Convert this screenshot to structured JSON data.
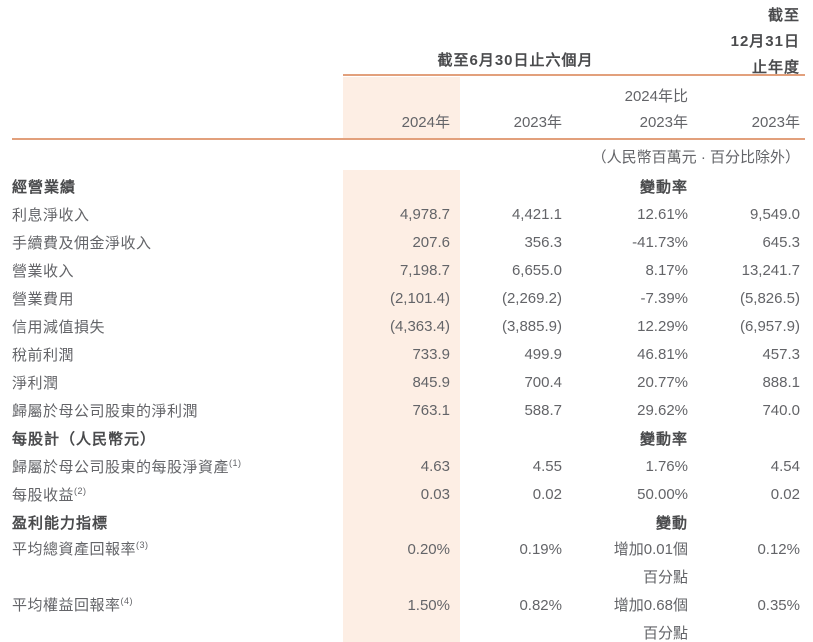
{
  "colors": {
    "band": "#fdeee4",
    "rule": "#e2a07c",
    "text": "#636468",
    "bold_text": "#4a4b4d"
  },
  "header": {
    "annual_caption": {
      "line1": "截至",
      "line2": "12月31日",
      "line3": "止年度"
    },
    "interim_caption": "截至6月30日止六個月",
    "change_caption": {
      "line1": "2024年比",
      "line2": "2023年"
    },
    "col_labels": {
      "c1": "2024年",
      "c2": "2023年",
      "c4": "2023年"
    },
    "unit_note": "（人民幣百萬元 · 百分比除外）"
  },
  "table": {
    "rows": [
      {
        "label": "經營業績",
        "sup": "",
        "v1": "",
        "v2": "",
        "v3": "變動率",
        "v3b": "",
        "v4": ""
      },
      {
        "label": "利息淨收入",
        "sup": "",
        "v1": "4,978.7",
        "v2": "4,421.1",
        "v3": "12.61%",
        "v3b": "",
        "v4": "9,549.0"
      },
      {
        "label": "手續費及佣金淨收入",
        "sup": "",
        "v1": "207.6",
        "v2": "356.3",
        "v3": "-41.73%",
        "v3b": "",
        "v4": "645.3"
      },
      {
        "label": "營業收入",
        "sup": "",
        "v1": "7,198.7",
        "v2": "6,655.0",
        "v3": "8.17%",
        "v3b": "",
        "v4": "13,241.7"
      },
      {
        "label": "營業費用",
        "sup": "",
        "v1": "(2,101.4)",
        "v2": "(2,269.2)",
        "v3": "-7.39%",
        "v3b": "",
        "v4": "(5,826.5)"
      },
      {
        "label": "信用減值損失",
        "sup": "",
        "v1": "(4,363.4)",
        "v2": "(3,885.9)",
        "v3": "12.29%",
        "v3b": "",
        "v4": "(6,957.9)"
      },
      {
        "label": "稅前利潤",
        "sup": "",
        "v1": "733.9",
        "v2": "499.9",
        "v3": "46.81%",
        "v3b": "",
        "v4": "457.3"
      },
      {
        "label": "淨利潤",
        "sup": "",
        "v1": "845.9",
        "v2": "700.4",
        "v3": "20.77%",
        "v3b": "",
        "v4": "888.1"
      },
      {
        "label": "歸屬於母公司股東的淨利潤",
        "sup": "",
        "v1": "763.1",
        "v2": "588.7",
        "v3": "29.62%",
        "v3b": "",
        "v4": "740.0"
      },
      {
        "label": "每股計（人民幣元）",
        "sup": "",
        "v1": "",
        "v2": "",
        "v3": "變動率",
        "v3b": "",
        "v4": ""
      },
      {
        "label": "歸屬於母公司股東的每股淨資產",
        "sup": "(1)",
        "v1": "4.63",
        "v2": "4.55",
        "v3": "1.76%",
        "v3b": "",
        "v4": "4.54"
      },
      {
        "label": "每股收益",
        "sup": "(2)",
        "v1": "0.03",
        "v2": "0.02",
        "v3": "50.00%",
        "v3b": "",
        "v4": "0.02"
      },
      {
        "label": "盈利能力指標",
        "sup": "",
        "v1": "",
        "v2": "",
        "v3": "變動",
        "v3b": "",
        "v4": ""
      },
      {
        "label": "平均總資產回報率",
        "sup": "(3)",
        "v1": "0.20%",
        "v2": "0.19%",
        "v3": "增加0.01個",
        "v3b": "百分點",
        "v4": "0.12%"
      },
      {
        "label": "平均權益回報率",
        "sup": "(4)",
        "v1": "1.50%",
        "v2": "0.82%",
        "v3": "增加0.68個",
        "v3b": "百分點",
        "v4": "0.35%"
      }
    ]
  }
}
